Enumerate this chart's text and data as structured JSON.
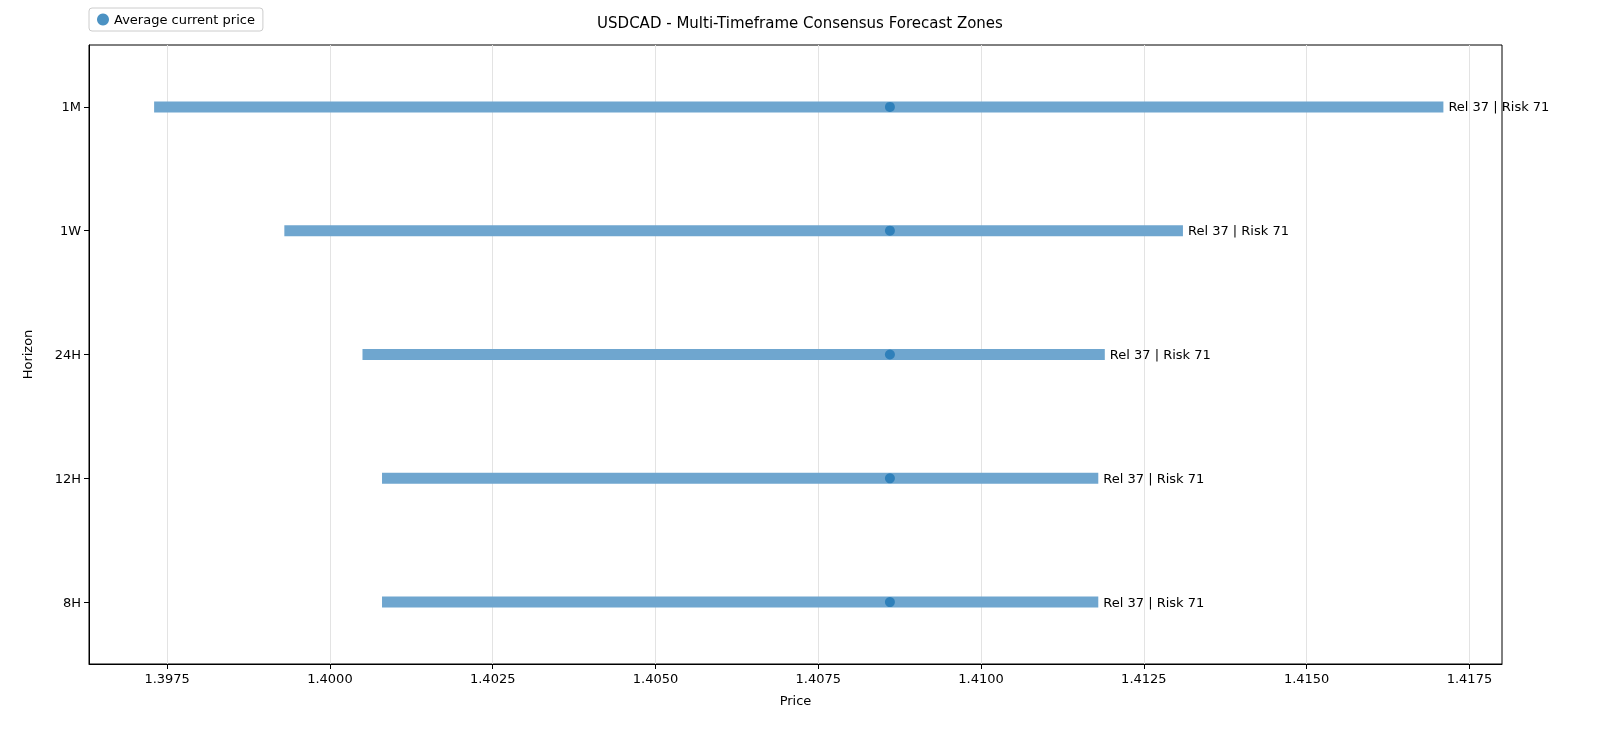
{
  "chart_data": {
    "type": "bar",
    "orientation": "horizontal",
    "title": "USDCAD - Multi-Timeframe Consensus Forecast Zones",
    "xlabel": "Price",
    "ylabel": "Horizon",
    "categories": [
      "1M",
      "1W",
      "24H",
      "12H",
      "8H"
    ],
    "series": [
      {
        "color": "#6fa6cf",
        "base": [
          1.3973,
          1.3993,
          1.4005,
          1.4008,
          1.4008
        ],
        "values": [
          0.0198,
          0.0138,
          0.0114,
          0.011,
          0.011
        ],
        "value_labels": [
          "Rel 37 | Risk 71",
          "Rel 37 | Risk 71",
          "Rel 37 | Risk 71",
          "Rel 37 | Risk 71",
          "Rel 37 | Risk 71"
        ]
      },
      {
        "type": "scatter",
        "name": "Average current price",
        "color": "#1f77b4",
        "marker": "circle",
        "values": [
          1.4086,
          1.4086,
          1.4086,
          1.4086,
          1.4086
        ]
      }
    ],
    "xlim": [
      1.3963,
      1.418
    ],
    "xticks": [
      1.3975,
      {
        "value": 1.4,
        "label": "1.4000"
      },
      1.4025,
      {
        "value": 1.405,
        "label": "1.4050"
      },
      1.4075,
      {
        "value": 1.41,
        "label": "1.4100"
      },
      1.4125,
      {
        "value": 1.415,
        "label": "1.4150"
      },
      1.4175
    ],
    "grid": "x",
    "legend": "top left"
  }
}
